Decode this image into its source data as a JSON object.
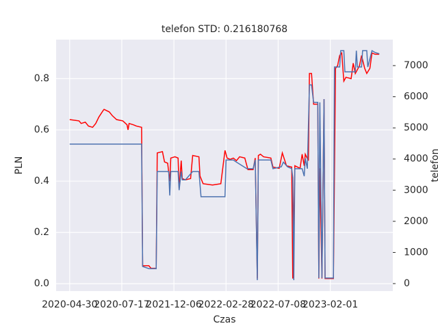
{
  "chart_data": {
    "type": "line",
    "title": "telefon STD: 0.216180768",
    "xlabel": "Czas",
    "ylabel": "PLN",
    "y2label": "telefon",
    "xlim": [
      -13,
      310
    ],
    "xticks": [
      {
        "value": 0,
        "label": "2020-04-30"
      },
      {
        "value": 50,
        "label": "2020-07-17"
      },
      {
        "value": 100,
        "label": "2021-12-06"
      },
      {
        "value": 150,
        "label": "2022-02-28"
      },
      {
        "value": 200,
        "label": "2022-07-08"
      },
      {
        "value": 250,
        "label": "2023-02-01"
      }
    ],
    "ylim": [
      -0.029,
      0.952
    ],
    "yticks": [
      {
        "value": 0,
        "label": "0.0"
      },
      0.2,
      0.4,
      0.6,
      0.8
    ],
    "y2lim": [
      -241,
      7834
    ],
    "y2ticks": [
      0,
      1000,
      2000,
      3000,
      4000,
      5000,
      6000,
      7000
    ],
    "grid": true,
    "series": [
      {
        "color": "#ff0000",
        "axis": "y",
        "x": [
          0,
          9,
          11,
          15,
          18,
          22,
          25,
          28,
          32,
          33,
          38,
          41,
          45,
          51,
          55,
          56,
          57,
          61,
          64,
          69,
          70,
          76,
          78,
          83,
          84,
          89,
          91,
          94,
          96,
          97,
          101,
          104,
          105,
          107,
          108,
          111,
          116,
          118,
          124,
          125,
          128,
          137,
          145,
          149,
          151,
          154,
          157,
          160,
          163,
          168,
          171,
          176,
          178,
          180,
          181,
          183,
          186,
          193,
          195,
          201,
          204,
          208,
          213,
          214,
          216,
          221,
          223,
          225,
          226,
          229,
          230,
          232,
          234,
          238,
          239,
          240,
          242,
          244,
          245,
          253,
          255,
          257,
          259,
          261,
          263,
          265,
          270,
          272,
          274,
          278,
          280,
          283,
          285,
          288,
          290,
          293,
          297
        ],
        "values": [
          0.64,
          0.635,
          0.625,
          0.63,
          0.615,
          0.61,
          0.625,
          0.65,
          0.675,
          0.68,
          0.67,
          0.655,
          0.64,
          0.635,
          0.62,
          0.6,
          0.625,
          0.62,
          0.615,
          0.61,
          0.07,
          0.07,
          0.06,
          0.06,
          0.51,
          0.515,
          0.475,
          0.47,
          0.4,
          0.49,
          0.495,
          0.49,
          0.37,
          0.48,
          0.41,
          0.405,
          0.41,
          0.5,
          0.495,
          0.42,
          0.39,
          0.385,
          0.39,
          0.52,
          0.49,
          0.485,
          0.49,
          0.48,
          0.495,
          0.49,
          0.445,
          0.445,
          0.49,
          0.02,
          0.5,
          0.505,
          0.495,
          0.49,
          0.455,
          0.45,
          0.51,
          0.46,
          0.455,
          0.02,
          0.46,
          0.45,
          0.505,
          0.46,
          0.505,
          0.48,
          0.82,
          0.82,
          0.7,
          0.7,
          0.02,
          0.45,
          0.02,
          0.72,
          0.02,
          0.02,
          0.84,
          0.85,
          0.89,
          0.9,
          0.79,
          0.805,
          0.8,
          0.86,
          0.82,
          0.85,
          0.89,
          0.84,
          0.82,
          0.84,
          0.9,
          0.895,
          0.895
        ]
      },
      {
        "color": "#4c72b0",
        "axis": "y2",
        "x": [
          0,
          69,
          70,
          76,
          83,
          84,
          95,
          96,
          97,
          104,
          105,
          107,
          108,
          111,
          118,
          124,
          126,
          149,
          150,
          157,
          160,
          170,
          176,
          178,
          180,
          181,
          193,
          195,
          203,
          205,
          209,
          213,
          214,
          215,
          216,
          223,
          225,
          226,
          228,
          230,
          232,
          234,
          238,
          239,
          240,
          242,
          244,
          245,
          253,
          254,
          259,
          260,
          263,
          264,
          274,
          275,
          276,
          280,
          281,
          285,
          286,
          290,
          293,
          297
        ],
        "values": [
          4480,
          4480,
          550,
          480,
          480,
          3600,
          3600,
          2830,
          3600,
          3600,
          3000,
          3600,
          3330,
          3330,
          3600,
          3600,
          2790,
          2790,
          3970,
          3970,
          3900,
          3690,
          3690,
          3970,
          110,
          3970,
          3970,
          3690,
          3750,
          3900,
          3750,
          3690,
          3400,
          110,
          3690,
          3690,
          3450,
          4020,
          3690,
          6380,
          6380,
          5820,
          5820,
          180,
          5820,
          180,
          5925,
          180,
          180,
          6955,
          6955,
          7480,
          7480,
          6800,
          6800,
          7480,
          6955,
          6955,
          7480,
          7480,
          6955,
          7480,
          7420,
          7380
        ]
      }
    ]
  }
}
